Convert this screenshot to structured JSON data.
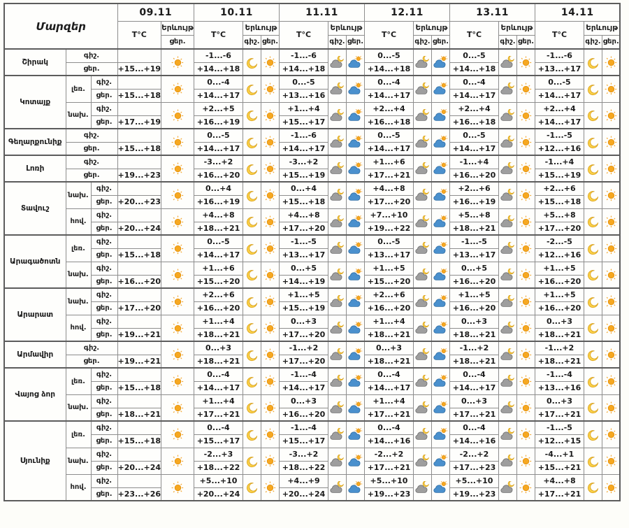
{
  "table": {
    "corner_label": "Մարզեր",
    "temp_header": "T°C",
    "phenomenon_header": "Երևույթ",
    "night_abbr": "գիշ.",
    "day_abbr": "ցեր.",
    "dates": [
      "09.11",
      "10.11",
      "11.11",
      "12.11",
      "13.11",
      "14.11"
    ],
    "icons_by_date": {
      "night": [
        "",
        "moon",
        "cloud-moon",
        "cloud-moon",
        "cloud-moon",
        "moon"
      ],
      "day": [
        "sun",
        "sun",
        "cloud-sun",
        "cloud-sun",
        "sun",
        "sun"
      ]
    },
    "regions": [
      {
        "name": "Շիրակ",
        "zones": [
          {
            "zone": "",
            "night": [
              "",
              "-1...-6",
              "-1...-6",
              "0...-5",
              "0...-5",
              "-1...-6"
            ],
            "day": [
              "+15...+19",
              "+14...+18",
              "+14...+18",
              "+14...+18",
              "+14...+18",
              "+13...+17"
            ]
          }
        ]
      },
      {
        "name": "Կոտայք",
        "zones": [
          {
            "zone": "լեռ.",
            "night": [
              "",
              "0...-4",
              "0...-5",
              "0...-4",
              "0...-4",
              "0...-5"
            ],
            "day": [
              "+15...+18",
              "+14...+17",
              "+13...+16",
              "+14...+17",
              "+14...+17",
              "+14...+17"
            ]
          },
          {
            "zone": "նախ.",
            "night": [
              "",
              "+2...+5",
              "+1...+4",
              "+2...+4",
              "+2...+4",
              "+2...+4"
            ],
            "day": [
              "+17...+19",
              "+16...+19",
              "+15...+17",
              "+16...+18",
              "+16...+18",
              "+14...+17"
            ]
          }
        ]
      },
      {
        "name": "Գեղարքունիք",
        "zones": [
          {
            "zone": "",
            "night": [
              "",
              "0...-5",
              "-1...-6",
              "0...-5",
              "0...-5",
              "-1...-5"
            ],
            "day": [
              "+15...+18",
              "+14...+17",
              "+14...+17",
              "+14...+17",
              "+14...+17",
              "+12...+16"
            ]
          }
        ]
      },
      {
        "name": "Լոռի",
        "zones": [
          {
            "zone": "",
            "night": [
              "",
              "-3...+2",
              "-3...+2",
              "+1...+6",
              "-1...+4",
              "-1...+4"
            ],
            "day": [
              "+19...+23",
              "+16...+20",
              "+15...+19",
              "+17...+21",
              "+16...+20",
              "+15...+19"
            ]
          }
        ]
      },
      {
        "name": "Տավուշ",
        "zones": [
          {
            "zone": "նախ.",
            "night": [
              "",
              "0...+4",
              "0...+4",
              "+4...+8",
              "+2...+6",
              "+2...+6"
            ],
            "day": [
              "+20...+23",
              "+16...+19",
              "+15...+18",
              "+17...+20",
              "+16...+19",
              "+15...+18"
            ]
          },
          {
            "zone": "հով.",
            "night": [
              "",
              "+4...+8",
              "+4...+8",
              "+7...+10",
              "+5...+8",
              "+5...+8"
            ],
            "day": [
              "+20...+24",
              "+18...+21",
              "+17...+20",
              "+19...+22",
              "+18...+21",
              "+17...+20"
            ]
          }
        ]
      },
      {
        "name": "Արագածոտն",
        "zones": [
          {
            "zone": "լեռ.",
            "night": [
              "",
              "0...-5",
              "-1...-5",
              "0...-5",
              "-1...-5",
              "-2...-5"
            ],
            "day": [
              "+15...+18",
              "+14...+17",
              "+13...+17",
              "+13...+17",
              "+13...+17",
              "+12...+16"
            ]
          },
          {
            "zone": "նախ.",
            "night": [
              "",
              "+1...+6",
              "0...+5",
              "+1...+5",
              "0...+5",
              "+1...+5"
            ],
            "day": [
              "+16...+20",
              "+15...+20",
              "+14...+19",
              "+15...+20",
              "+16...+20",
              "+16...+20"
            ]
          }
        ]
      },
      {
        "name": "Արարատ",
        "zones": [
          {
            "zone": "նախ.",
            "night": [
              "",
              "+2...+6",
              "+1...+5",
              "+2...+6",
              "+1...+5",
              "+1...+5"
            ],
            "day": [
              "+17...+20",
              "+16...+20",
              "+15...+19",
              "+16...+20",
              "+16...+20",
              "+16...+20"
            ]
          },
          {
            "zone": "հով.",
            "night": [
              "",
              "+1...+4",
              "0...+3",
              "+1...+4",
              "0...+3",
              "0...+3"
            ],
            "day": [
              "+19...+21",
              "+18...+21",
              "+17...+20",
              "+18...+21",
              "+18...+21",
              "+18...+21"
            ]
          }
        ]
      },
      {
        "name": "Արմավիր",
        "zones": [
          {
            "zone": "",
            "night": [
              "",
              "0...+3",
              "-1...+2",
              "0...+3",
              "-1...+2",
              "-1...+2"
            ],
            "day": [
              "+19...+21",
              "+18...+21",
              "+17...+20",
              "+18...+21",
              "+18...+21",
              "+18...+21"
            ]
          }
        ]
      },
      {
        "name": "Վայոց ձոր",
        "zones": [
          {
            "zone": "լեռ.",
            "night": [
              "",
              "0...-4",
              "-1...-4",
              "0...-4",
              "0...-4",
              "-1...-4"
            ],
            "day": [
              "+15...+18",
              "+14...+17",
              "+14...+17",
              "+14...+17",
              "+14...+17",
              "+13...+16"
            ]
          },
          {
            "zone": "նախ.",
            "night": [
              "",
              "+1...+4",
              "0...+3",
              "+1...+4",
              "0...+3",
              "0...+3"
            ],
            "day": [
              "+18...+21",
              "+17...+21",
              "+16...+20",
              "+17...+21",
              "+17...+21",
              "+17...+21"
            ]
          }
        ]
      },
      {
        "name": "Սյունիք",
        "zones": [
          {
            "zone": "լեռ.",
            "night": [
              "",
              "0...-4",
              "-1...-4",
              "0...-4",
              "0...-4",
              "-1...-5"
            ],
            "day": [
              "+15...+18",
              "+15...+17",
              "+15...+17",
              "+14...+16",
              "+14...+16",
              "+12...+15"
            ]
          },
          {
            "zone": "նախ.",
            "night": [
              "",
              "-2...+3",
              "-3...+2",
              "-2...+2",
              "-2...+2",
              "-4...+1"
            ],
            "day": [
              "+20...+24",
              "+18...+22",
              "+18...+22",
              "+17...+21",
              "+17...+23",
              "+15...+21"
            ]
          },
          {
            "zone": "հով.",
            "night": [
              "",
              "+5...+10",
              "+4...+9",
              "+5...+10",
              "+5...+10",
              "+4...+8"
            ],
            "day": [
              "+23...+26",
              "+20...+24",
              "+20...+24",
              "+19...+23",
              "+19...+23",
              "+17...+21"
            ]
          }
        ]
      }
    ]
  },
  "colors": {
    "sun_core": "#f6a821",
    "sun_outline": "#e08e0b",
    "sun_rays": "#f4ad3d",
    "moon": "#fbd148",
    "moon_outline": "#d9a11a",
    "cloud_gray": "#9e9e9e",
    "cloud_gray_outline": "#6e6e6e",
    "cloud_blue": "#4a90cd",
    "cloud_blue_outline": "#2e6da4",
    "border": "#8d8d8d",
    "border_strong": "#5c5c5c",
    "text": "#1b1b1b"
  }
}
